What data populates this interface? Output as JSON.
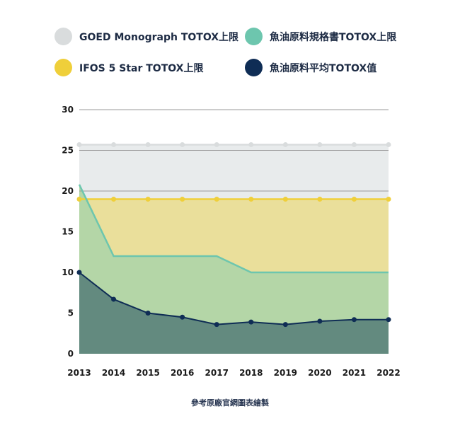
{
  "chart_data": {
    "type": "area",
    "title": "",
    "xlabel": "",
    "ylabel": "",
    "x": [
      "2013",
      "2014",
      "2015",
      "2016",
      "2017",
      "2018",
      "2019",
      "2020",
      "2021",
      "2022"
    ],
    "ylim": [
      0,
      30
    ],
    "yticks": [
      "0",
      "5",
      "10",
      "15",
      "20",
      "25",
      "30"
    ],
    "grid": true,
    "legend_position": "top",
    "series": [
      {
        "name": "GOED Monograph TOTOX上限",
        "color": "#d9dcdd",
        "fill": "#e8ebec",
        "values": [
          25.7,
          25.7,
          25.7,
          25.7,
          25.7,
          25.7,
          25.7,
          25.7,
          25.7,
          25.7
        ],
        "markers": true
      },
      {
        "name": "魚油原料規格書TOTOX上限",
        "color": "#6dc6ae",
        "fill": "#b4d6a7",
        "values": [
          20.8,
          12,
          12,
          12,
          12,
          10,
          10,
          10,
          10,
          10
        ],
        "markers": false
      },
      {
        "name": "IFOS 5 Star TOTOX上限",
        "color": "#efcf3a",
        "fill": "#eadf9b",
        "values": [
          19,
          19,
          19,
          19,
          19,
          19,
          19,
          19,
          19,
          19
        ],
        "markers": true
      },
      {
        "name": "魚油原料平均TOTOX值",
        "color": "#0f2d55",
        "fill": "#638a7f",
        "values": [
          10,
          6.7,
          5.0,
          4.5,
          3.6,
          3.9,
          3.6,
          4.0,
          4.2,
          4.2
        ],
        "markers": true
      }
    ]
  },
  "legend": [
    {
      "label": "GOED Monograph TOTOX上限",
      "color": "#d9dcdd"
    },
    {
      "label": "魚油原料規格書TOTOX上限",
      "color": "#6dc6ae"
    },
    {
      "label": "IFOS 5 Star TOTOX上限",
      "color": "#efcf3a"
    },
    {
      "label": "魚油原料平均TOTOX值",
      "color": "#0f2d55"
    }
  ],
  "caption": "參考原廠官網圖表繪製"
}
